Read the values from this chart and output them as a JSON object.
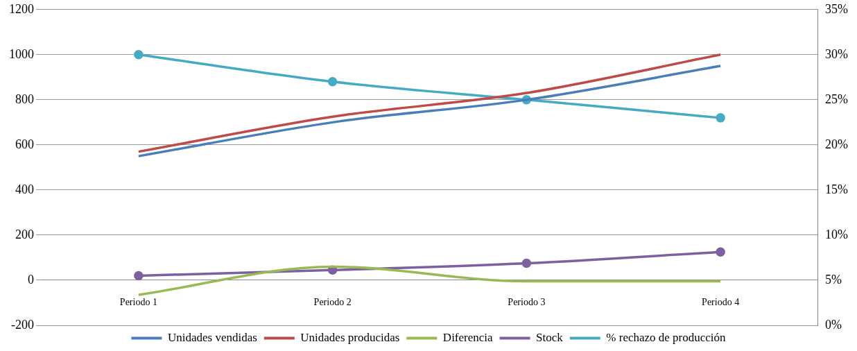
{
  "chart_data": {
    "type": "line",
    "categories": [
      "Periodo 1",
      "Periodo 2",
      "Periodo 3",
      "Periodo 4"
    ],
    "series": [
      {
        "name": "Unidades vendidas",
        "color": "#4a7ebb",
        "values": [
          550,
          700,
          800,
          950
        ],
        "marker": "none"
      },
      {
        "name": "Unidades producidas",
        "color": "#be4b48",
        "values": [
          570,
          725,
          830,
          1000
        ],
        "marker": "none"
      },
      {
        "name": "Diferencia",
        "color": "#98b954",
        "values": [
          -65,
          60,
          -5,
          -5
        ],
        "marker": "none"
      },
      {
        "name": "Stock",
        "color": "#7d60a0",
        "values": [
          20,
          45,
          75,
          125
        ],
        "marker": "circle"
      },
      {
        "name": "% rechazo de producción",
        "color": "#46aac5",
        "values": [
          30,
          27,
          25,
          23
        ],
        "marker": "circle",
        "axis": "y2"
      }
    ],
    "ylim": [
      -200,
      1200
    ],
    "yticks": [
      -200,
      0,
      200,
      400,
      600,
      800,
      1000,
      1200
    ],
    "y2lim": [
      0,
      35
    ],
    "y2ticks": [
      {
        "value": 0,
        "label": "0%"
      },
      {
        "value": 5,
        "label": "5%"
      },
      {
        "value": 10,
        "label": "10%"
      },
      {
        "value": 15,
        "label": "15%"
      },
      {
        "value": 20,
        "label": "20%"
      },
      {
        "value": 25,
        "label": "25%"
      },
      {
        "value": 30,
        "label": "30%"
      },
      {
        "value": 35,
        "label": "35%"
      }
    ],
    "grid": "y",
    "legend": "bottom"
  }
}
